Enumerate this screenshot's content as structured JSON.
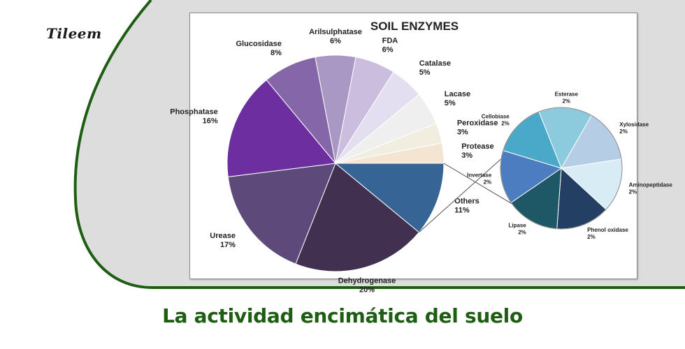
{
  "brand": {
    "logo_text": "Tileem"
  },
  "caption": "La actividad encimática del suelo",
  "colors": {
    "accent_green": "#1e5e12",
    "panel_gray": "#dddddd"
  },
  "chart_data": [
    {
      "type": "pie",
      "title": "SOIL ENZYMES",
      "slices": [
        {
          "label": "Dehydrogenase",
          "pct": "20%",
          "value": 20,
          "color": "#41304f"
        },
        {
          "label": "Urease",
          "pct": "17%",
          "value": 17,
          "color": "#5e4a7a"
        },
        {
          "label": "Phosphatase",
          "pct": "16%",
          "value": 16,
          "color": "#6d2fa0"
        },
        {
          "label": "Glucosidase",
          "pct": "8%",
          "value": 8,
          "color": "#8566a8"
        },
        {
          "label": "Arilsulphatase",
          "pct": "6%",
          "value": 6,
          "color": "#aa98c4"
        },
        {
          "label": "FDA",
          "pct": "6%",
          "value": 6,
          "color": "#cbbddd"
        },
        {
          "label": "Catalase",
          "pct": "5%",
          "value": 5,
          "color": "#e3def0"
        },
        {
          "label": "Lacase",
          "pct": "5%",
          "value": 5,
          "color": "#efefef"
        },
        {
          "label": "Peroxidase",
          "pct": "3%",
          "value": 3,
          "color": "#f1eee0"
        },
        {
          "label": "Protease",
          "pct": "3%",
          "value": 3,
          "color": "#f3e5d2"
        },
        {
          "label": "Others",
          "pct": "11%",
          "value": 11,
          "color": "#366494"
        }
      ]
    },
    {
      "type": "pie",
      "title": "",
      "parent": "Others",
      "slices": [
        {
          "label": "Esterase",
          "pct": "2%",
          "value": 2,
          "color": "#8ccbdd"
        },
        {
          "label": "Xylosidase",
          "pct": "2%",
          "value": 2,
          "color": "#b6cde6"
        },
        {
          "label": "Aminopeptidase",
          "pct": "2%",
          "value": 2,
          "color": "#d8ecf5"
        },
        {
          "label": "Phenol oxidase",
          "pct": "2%",
          "value": 2,
          "color": "#233f63"
        },
        {
          "label": "Lipase",
          "pct": "2%",
          "value": 2,
          "color": "#1e5866"
        },
        {
          "label": "Invertase",
          "pct": "2%",
          "value": 2,
          "color": "#4c7dc0"
        },
        {
          "label": "Cellobiase",
          "pct": "2%",
          "value": 2,
          "color": "#4aa9c8"
        }
      ]
    }
  ]
}
